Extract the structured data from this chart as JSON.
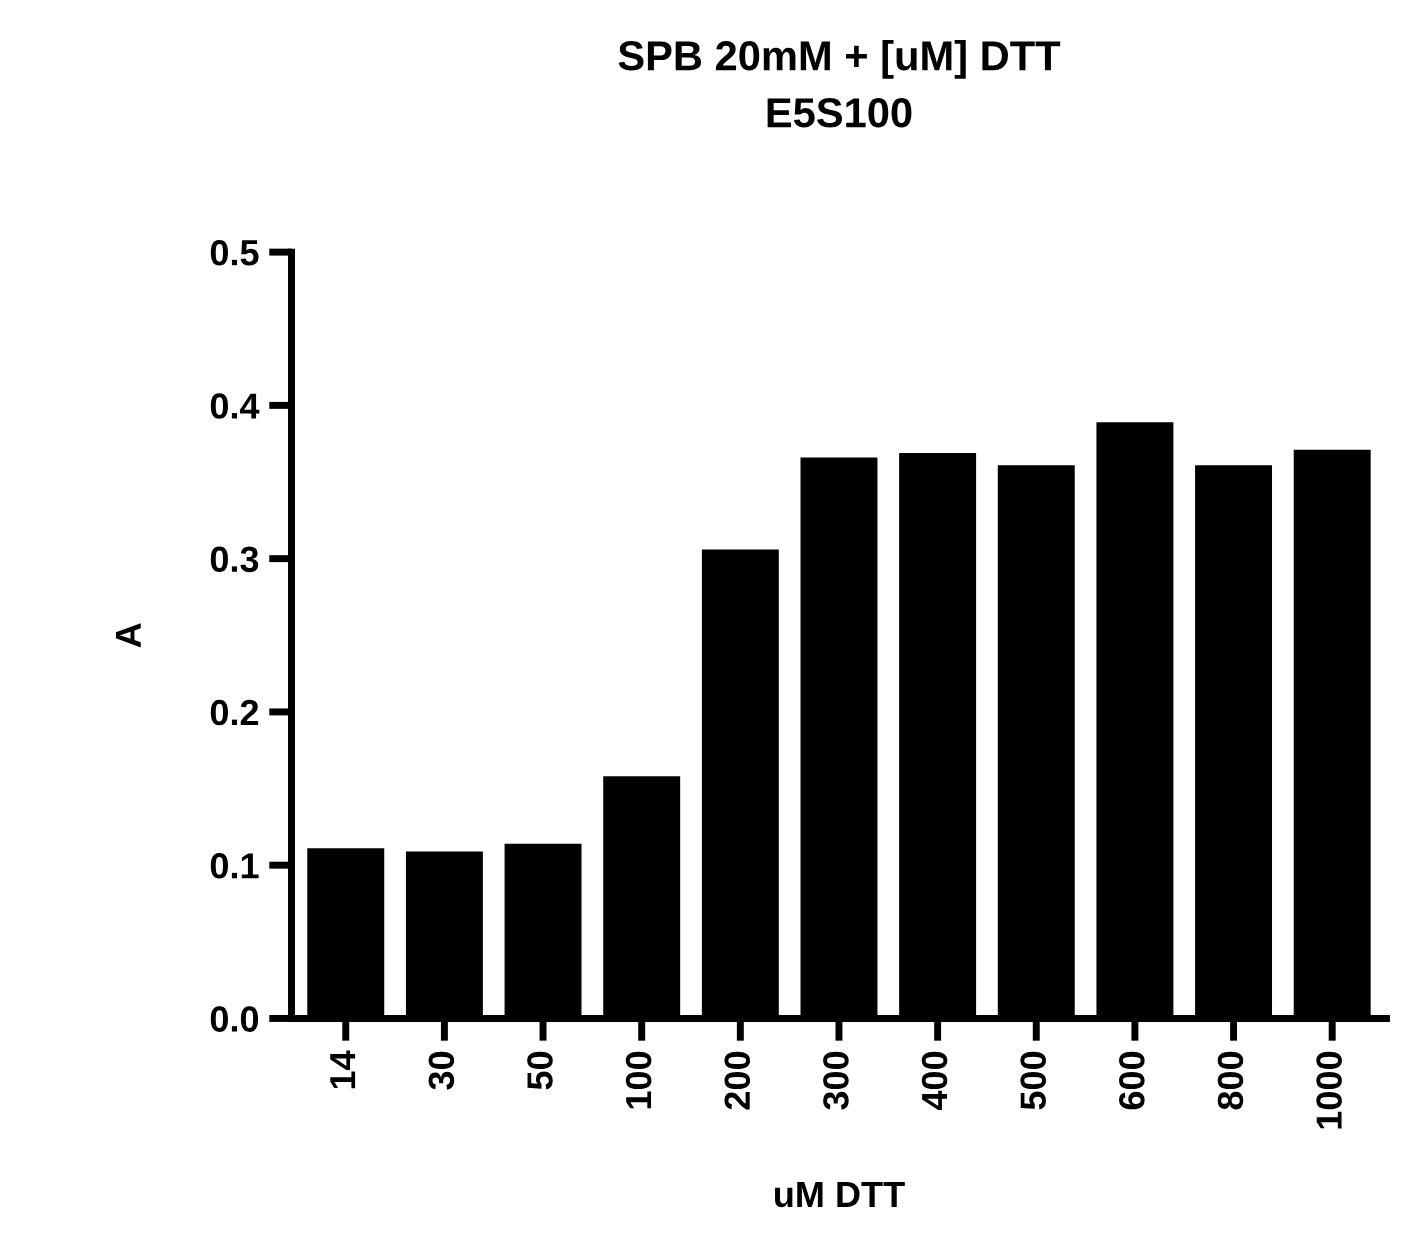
{
  "chart_data": {
    "type": "bar",
    "title": "SPB 20mM + [uM] DTT\nE5S100",
    "xlabel": "uM DTT",
    "ylabel": "A",
    "categories": [
      "14",
      "30",
      "50",
      "100",
      "200",
      "300",
      "400",
      "500",
      "600",
      "800",
      "1000"
    ],
    "values": [
      0.111,
      0.109,
      0.114,
      0.158,
      0.306,
      0.366,
      0.369,
      0.361,
      0.389,
      0.361,
      0.371
    ],
    "color": "#000000",
    "ylim": [
      0,
      0.5
    ],
    "yticks": [
      {
        "value": 0,
        "label": "0.0"
      },
      0.1,
      0.2,
      0.3,
      0.4,
      0.5
    ],
    "grid": false
  }
}
